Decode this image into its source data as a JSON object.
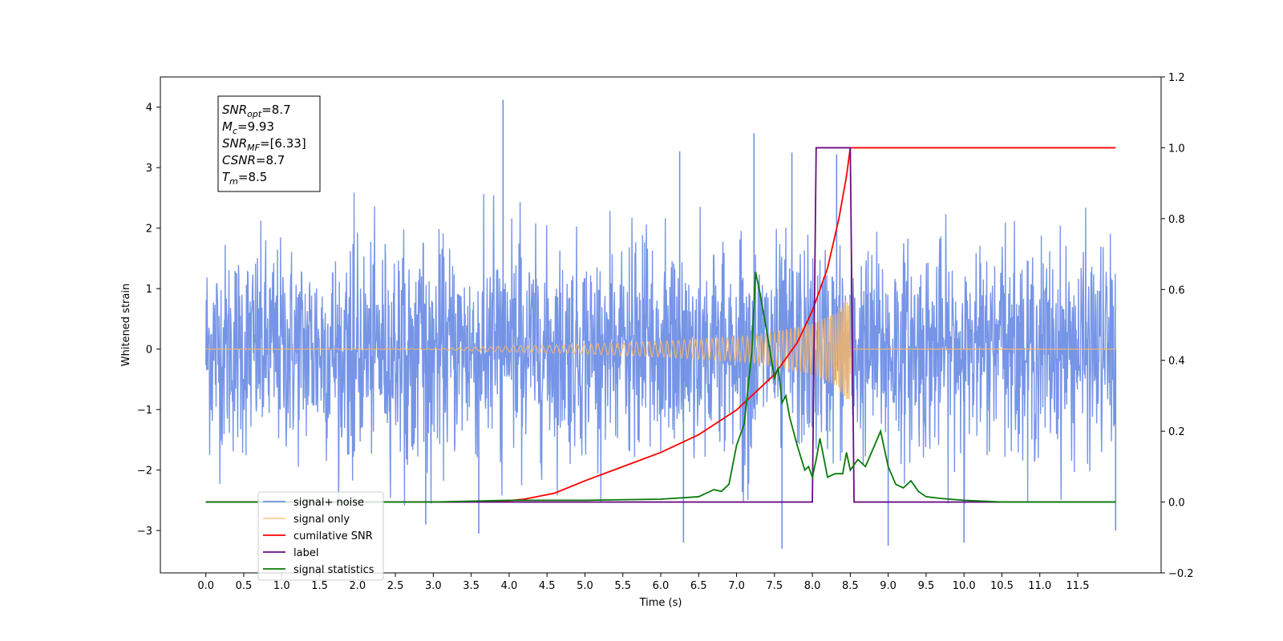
{
  "chart_data": {
    "type": "line",
    "xlabel": "Time (s)",
    "ylabel": "Whitened strain",
    "xlim": [
      -0.6,
      12.6
    ],
    "ylim": [
      -3.7,
      4.5
    ],
    "y2lim": [
      -0.2,
      1.2
    ],
    "x_ticks": [
      0.0,
      0.5,
      1.0,
      1.5,
      2.0,
      2.5,
      3.0,
      3.5,
      4.0,
      4.5,
      5.0,
      5.5,
      6.0,
      6.5,
      7.0,
      7.5,
      8.0,
      8.5,
      9.0,
      9.5,
      10.0,
      10.5,
      11.0,
      11.5
    ],
    "x_tick_labels": [
      "0.0",
      "0.5",
      "1.0",
      "1.5",
      "2.0",
      "2.5",
      "3.0",
      "3.5",
      "4.0",
      "4.5",
      "5.0",
      "5.5",
      "6.0",
      "6.5",
      "7.0",
      "7.5",
      "8.0",
      "8.5",
      "9.0",
      "9.5",
      "10.0",
      "10.5",
      "11.0",
      "11.5"
    ],
    "y_ticks": [
      -3,
      -2,
      -1,
      0,
      1,
      2,
      3,
      4
    ],
    "y_tick_labels": [
      "−3",
      "−2",
      "−1",
      "0",
      "1",
      "2",
      "3",
      "4"
    ],
    "y2_ticks": [
      -0.2,
      0.0,
      0.2,
      0.4,
      0.6,
      0.8,
      1.0,
      1.2
    ],
    "y2_tick_labels": [
      "−0.2",
      "0.0",
      "0.2",
      "0.4",
      "0.6",
      "0.8",
      "1.0",
      "1.2"
    ],
    "legend_position": "lower-left",
    "colors": {
      "signal_noise": "#6f8fe6",
      "signal_only": "#f5b66a",
      "cumulative_snr": "#ff0000",
      "label": "#6a0d83",
      "signal_statistics": "#0a7a0a"
    },
    "annotation": {
      "lines": [
        {
          "base": "SNR",
          "sub": "opt",
          "value": "=8.7"
        },
        {
          "base": "M",
          "sub": "c",
          "value": "=9.93"
        },
        {
          "base": "SNR",
          "sub": "MF",
          "value": "=[6.33]"
        },
        {
          "base": "CSNR",
          "sub": "",
          "value": "=8.7"
        },
        {
          "base": "T",
          "sub": "m",
          "value": "=8.5"
        }
      ]
    },
    "series": [
      {
        "name": "signal+ noise",
        "axis": "left",
        "style": "noise",
        "x_range": [
          0.0,
          12.0
        ],
        "amplitude_envelope": 2.6,
        "spikes": [
          {
            "x": 3.92,
            "y": 4.12
          },
          {
            "x": 7.23,
            "y": 3.57
          },
          {
            "x": 6.25,
            "y": 3.27
          },
          {
            "x": 7.73,
            "y": 3.25
          },
          {
            "x": 8.32,
            "y": 3.22
          },
          {
            "x": 7.6,
            "y": -3.3
          },
          {
            "x": 9.0,
            "y": -3.25
          },
          {
            "x": 3.6,
            "y": -3.05
          },
          {
            "x": 6.3,
            "y": -3.2
          },
          {
            "x": 10.0,
            "y": -3.2
          },
          {
            "x": 12.0,
            "y": -3.0
          },
          {
            "x": 2.9,
            "y": -2.9
          }
        ]
      },
      {
        "name": "signal only",
        "axis": "left",
        "style": "chirp",
        "x_range": [
          0.0,
          12.0
        ],
        "merger_time": 8.5,
        "amplitude_points": [
          [
            0.0,
            0.0
          ],
          [
            3.0,
            0.01
          ],
          [
            4.0,
            0.05
          ],
          [
            5.0,
            0.08
          ],
          [
            6.0,
            0.13
          ],
          [
            7.0,
            0.2
          ],
          [
            7.5,
            0.28
          ],
          [
            8.0,
            0.42
          ],
          [
            8.3,
            0.6
          ],
          [
            8.5,
            0.9
          ],
          [
            8.55,
            0.0
          ],
          [
            12.0,
            0.0
          ]
        ]
      },
      {
        "name": "cumilative SNR",
        "axis": "right",
        "points": [
          [
            0.0,
            0.0
          ],
          [
            3.8,
            0.0
          ],
          [
            4.2,
            0.008
          ],
          [
            4.6,
            0.025
          ],
          [
            5.0,
            0.06
          ],
          [
            5.5,
            0.1
          ],
          [
            6.0,
            0.14
          ],
          [
            6.5,
            0.19
          ],
          [
            7.0,
            0.26
          ],
          [
            7.5,
            0.36
          ],
          [
            7.8,
            0.45
          ],
          [
            8.0,
            0.54
          ],
          [
            8.2,
            0.66
          ],
          [
            8.35,
            0.8
          ],
          [
            8.45,
            0.92
          ],
          [
            8.5,
            1.0
          ],
          [
            12.0,
            1.0
          ]
        ]
      },
      {
        "name": "label",
        "axis": "right",
        "points": [
          [
            0.0,
            0.0
          ],
          [
            8.0,
            0.0
          ],
          [
            8.05,
            1.0
          ],
          [
            8.5,
            1.0
          ],
          [
            8.55,
            0.0
          ],
          [
            12.0,
            0.0
          ]
        ]
      },
      {
        "name": "signal statistics",
        "axis": "right",
        "points": [
          [
            0.0,
            0.0
          ],
          [
            3.0,
            0.0
          ],
          [
            4.0,
            0.005
          ],
          [
            5.0,
            0.005
          ],
          [
            6.0,
            0.008
          ],
          [
            6.5,
            0.015
          ],
          [
            6.7,
            0.035
          ],
          [
            6.8,
            0.03
          ],
          [
            6.9,
            0.05
          ],
          [
            7.0,
            0.16
          ],
          [
            7.1,
            0.22
          ],
          [
            7.2,
            0.42
          ],
          [
            7.25,
            0.65
          ],
          [
            7.3,
            0.6
          ],
          [
            7.4,
            0.48
          ],
          [
            7.5,
            0.35
          ],
          [
            7.55,
            0.38
          ],
          [
            7.6,
            0.28
          ],
          [
            7.65,
            0.3
          ],
          [
            7.7,
            0.24
          ],
          [
            7.8,
            0.16
          ],
          [
            7.9,
            0.09
          ],
          [
            7.95,
            0.1
          ],
          [
            8.0,
            0.07
          ],
          [
            8.05,
            0.12
          ],
          [
            8.1,
            0.18
          ],
          [
            8.2,
            0.07
          ],
          [
            8.3,
            0.08
          ],
          [
            8.4,
            0.08
          ],
          [
            8.45,
            0.14
          ],
          [
            8.5,
            0.09
          ],
          [
            8.6,
            0.12
          ],
          [
            8.7,
            0.1
          ],
          [
            8.8,
            0.15
          ],
          [
            8.9,
            0.2
          ],
          [
            9.0,
            0.1
          ],
          [
            9.1,
            0.05
          ],
          [
            9.2,
            0.04
          ],
          [
            9.3,
            0.06
          ],
          [
            9.4,
            0.03
          ],
          [
            9.5,
            0.015
          ],
          [
            9.7,
            0.01
          ],
          [
            10.0,
            0.005
          ],
          [
            10.5,
            0.0
          ],
          [
            12.0,
            0.0
          ]
        ]
      }
    ],
    "legend_entries": [
      "signal+ noise",
      "signal only",
      "cumilative SNR",
      "label",
      "signal statistics"
    ]
  }
}
